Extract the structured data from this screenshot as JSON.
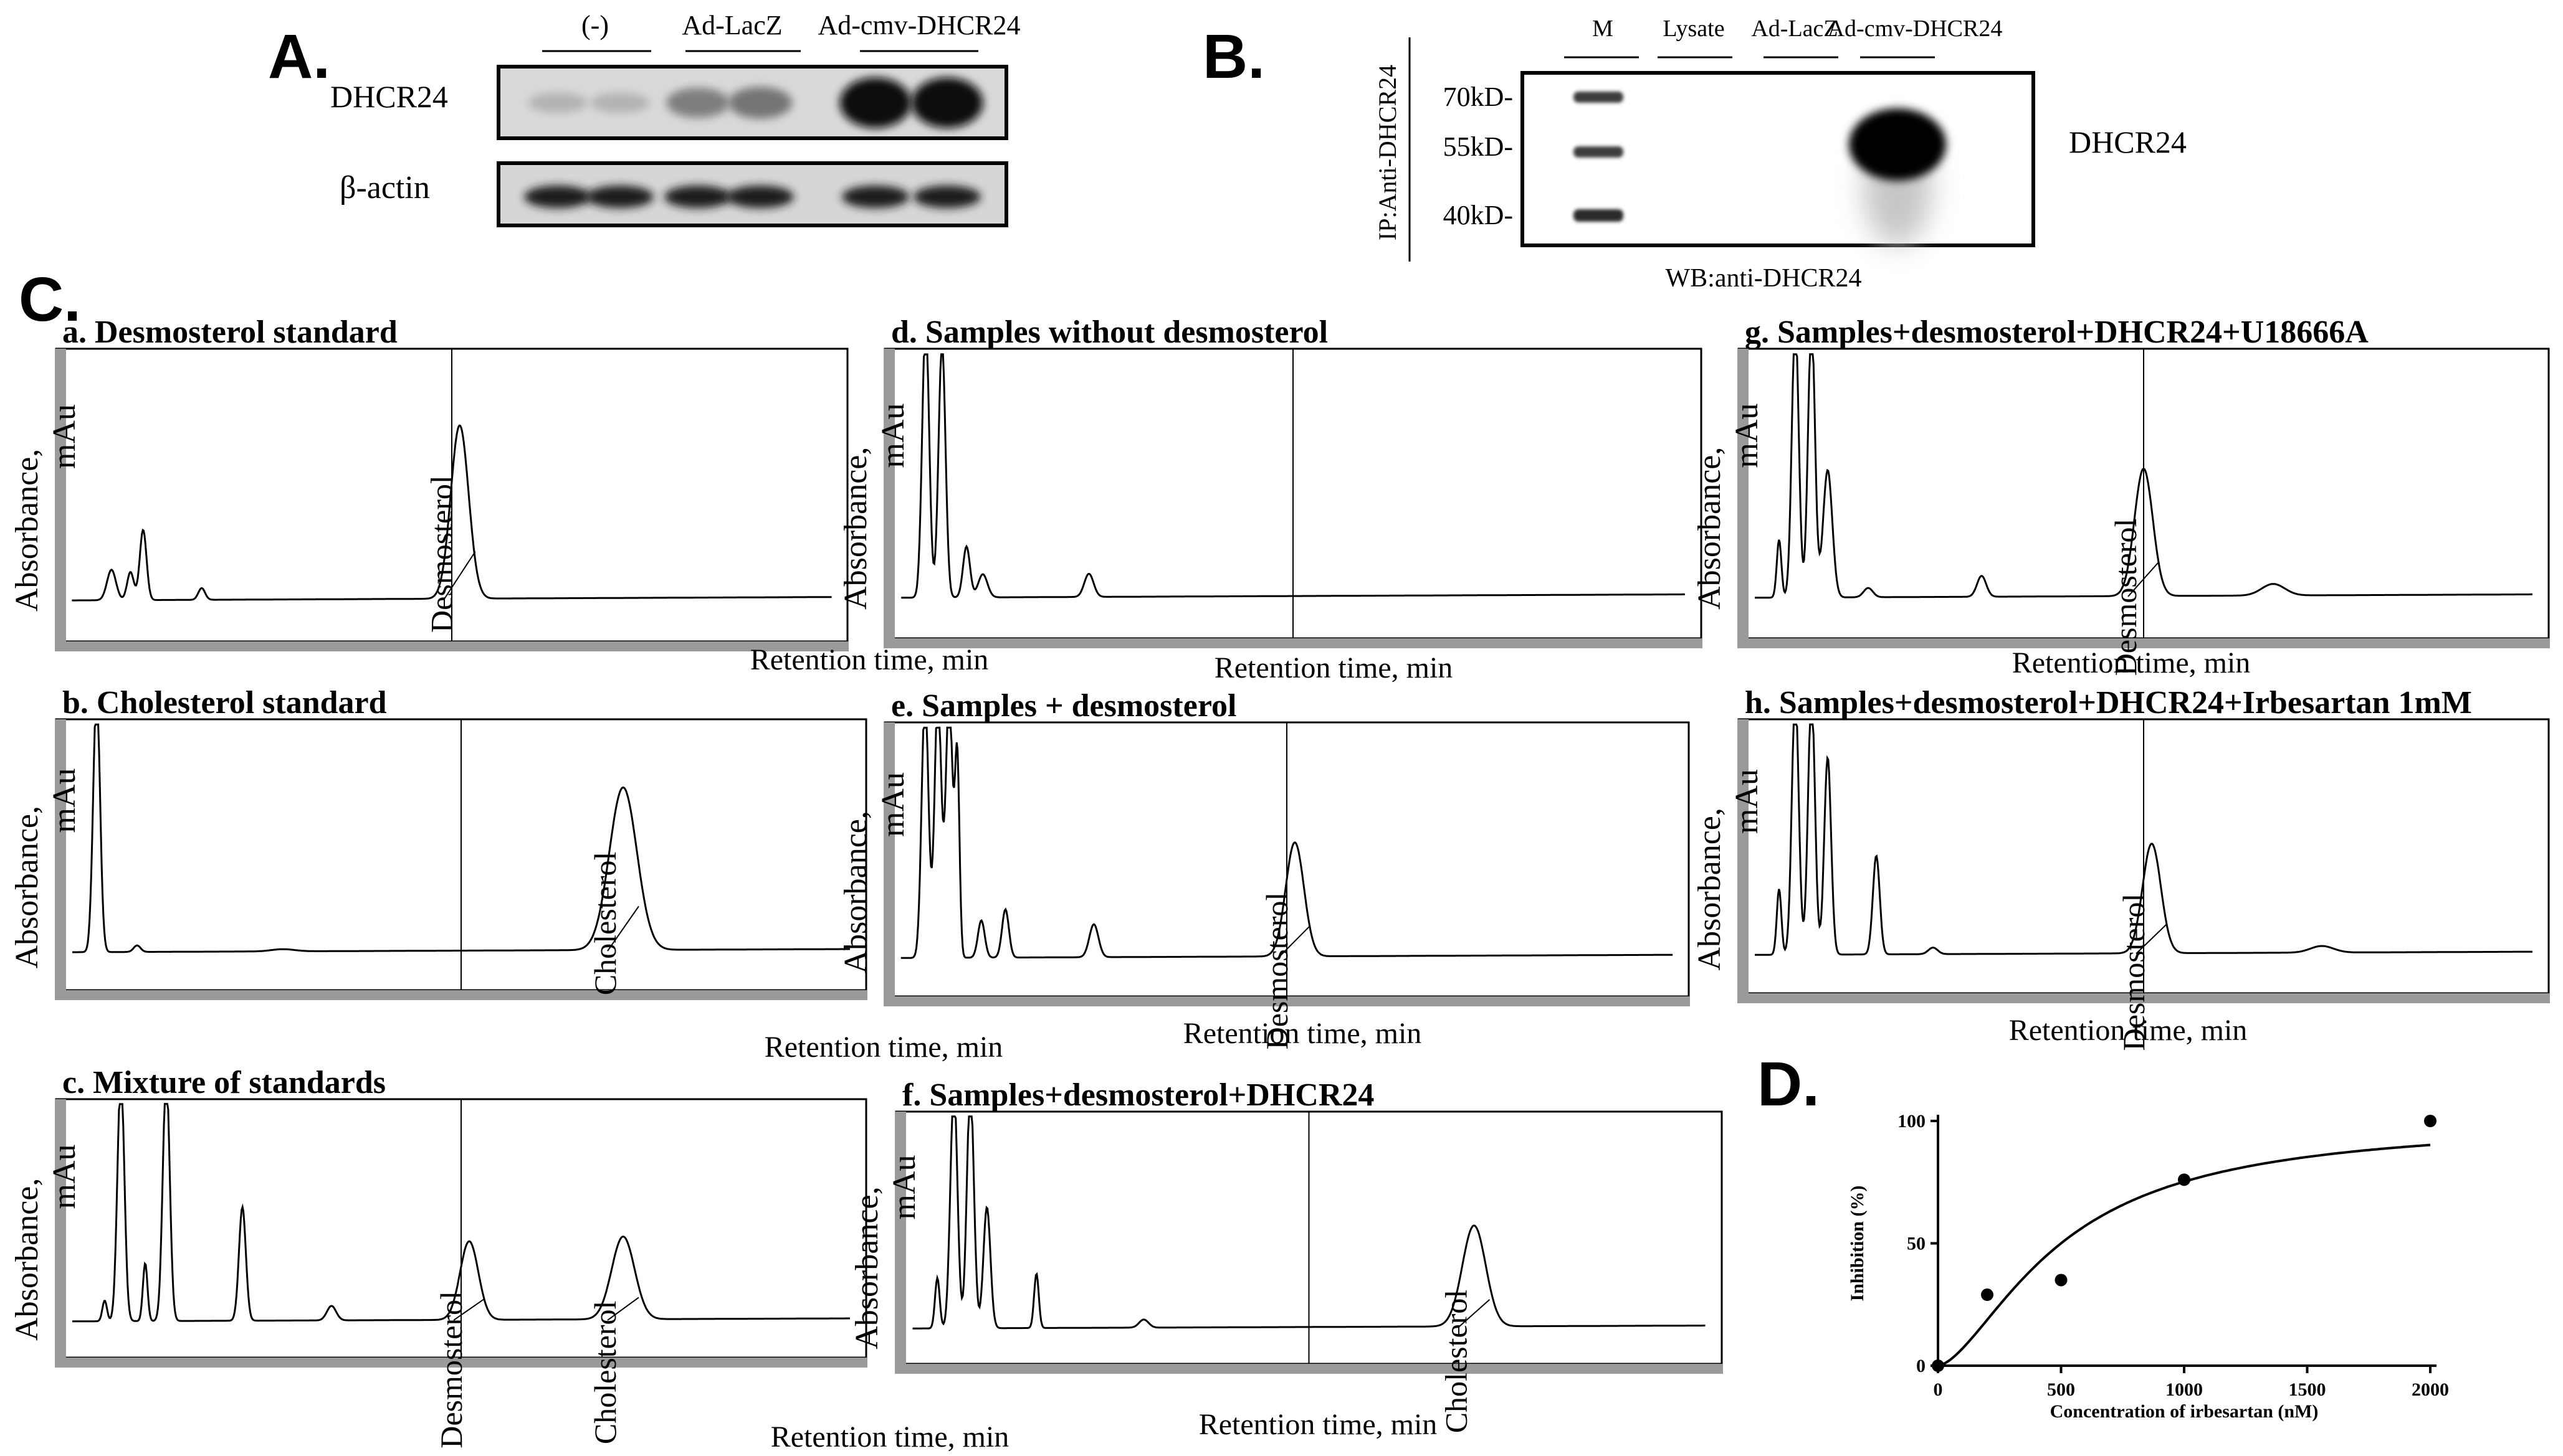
{
  "figure": {
    "panel_a": {
      "letter": "A.",
      "groups": [
        "(-)",
        "Ad-LacZ",
        "Ad-cmv-DHCR24"
      ],
      "rows": [
        "DHCR24",
        "β-actin"
      ],
      "band_intensity": {
        "DHCR24": [
          0.15,
          0.15,
          0.4,
          0.45,
          0.95,
          0.95
        ],
        "β-actin": [
          0.85,
          0.85,
          0.85,
          0.85,
          0.85,
          0.85
        ]
      }
    },
    "panel_b": {
      "letter": "B.",
      "lanes": [
        "M",
        "Lysate",
        "Ad-LacZ",
        "Ad-cmv-DHCR24"
      ],
      "ip_label": "IP:Anti-DHCR24",
      "wb_label": "WB:anti-DHCR24",
      "protein_label": "DHCR24",
      "markers": [
        "70kD-",
        "55kD-",
        "40kD-"
      ]
    },
    "panel_c": {
      "letter": "C.",
      "y_axis_label": "Absorbance, mAu",
      "x_axis_label": "Retention time, min",
      "chromatograms": [
        {
          "title": "a. Desmosterol standard",
          "peaks": [
            "Desmosterol"
          ]
        },
        {
          "title": "b. Cholesterol standard",
          "peaks": [
            "Cholesterol"
          ]
        },
        {
          "title": "c. Mixture of standards",
          "peaks": [
            "Desmosterol",
            "Cholesterol"
          ]
        },
        {
          "title": "d. Samples without desmosterol",
          "peaks": []
        },
        {
          "title": "e. Samples + desmosterol",
          "peaks": [
            "Desmosterol"
          ]
        },
        {
          "title": "f. Samples+desmosterol+DHCR24",
          "peaks": [
            "Cholesterol"
          ]
        },
        {
          "title": "g. Samples+desmosterol+DHCR24+U18666A",
          "peaks": [
            "Desmosterol"
          ]
        },
        {
          "title": "h. Samples+desmosterol+DHCR24+Irbesartan  1mM",
          "peaks": [
            "Desmosterol"
          ]
        }
      ]
    },
    "panel_d": {
      "letter": "D."
    }
  },
  "chart_data": {
    "type": "scatter",
    "xlabel": "Concentration of irbesartan (nM)",
    "ylabel": "Inhibition (%)",
    "xlim": [
      0,
      2000
    ],
    "ylim": [
      0,
      100
    ],
    "x_ticks": [
      "0",
      "500",
      "1000",
      "1500",
      "2000"
    ],
    "y_ticks": [
      "0",
      "50",
      "100"
    ],
    "points": [
      {
        "x": 0,
        "y": 0
      },
      {
        "x": 200,
        "y": 29
      },
      {
        "x": 500,
        "y": 35
      },
      {
        "x": 1000,
        "y": 76
      },
      {
        "x": 2000,
        "y": 100
      }
    ],
    "fit_curve": {
      "model": "hill",
      "top": 100,
      "ec50": 500,
      "hill": 1.6
    }
  }
}
